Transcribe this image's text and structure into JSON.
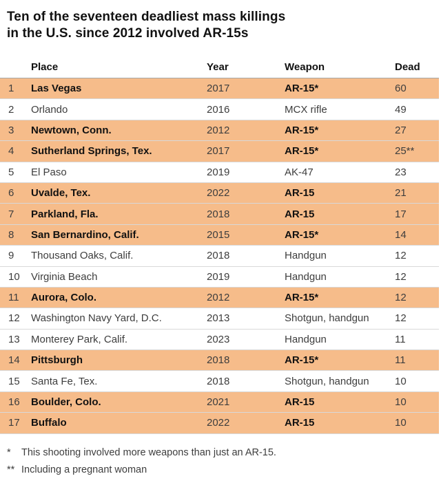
{
  "title": "Ten of the seventeen deadliest mass killings in the U.S. since 2012 involved AR-15s",
  "title_lines": [
    "Ten of the seventeen deadliest mass killings",
    "in the U.S. since 2012 involved AR-15s"
  ],
  "colors": {
    "highlight": "#F6BC8A",
    "row_divider": "#D8D8D8",
    "header_rule": "#A6A6A6",
    "text_primary": "#111111",
    "text_secondary": "#3D3D3D"
  },
  "chart_data": {
    "type": "table",
    "title": "Ten of the seventeen deadliest mass killings in the U.S. since 2012 involved AR-15s",
    "columns": [
      "Place",
      "Year",
      "Weapon",
      "Dead"
    ],
    "highlight_meaning": "Rows highlighted orange involved AR-15s",
    "rows": [
      {
        "rank": "1",
        "place": "Las Vegas",
        "year": "2017",
        "weapon": "AR-15*",
        "dead": "60",
        "highlight": true
      },
      {
        "rank": "2",
        "place": "Orlando",
        "year": "2016",
        "weapon": "MCX rifle",
        "dead": "49",
        "highlight": false
      },
      {
        "rank": "3",
        "place": "Newtown, Conn.",
        "year": "2012",
        "weapon": "AR-15*",
        "dead": "27",
        "highlight": true
      },
      {
        "rank": "4",
        "place": "Sutherland Springs, Tex.",
        "year": "2017",
        "weapon": "AR-15*",
        "dead": "25**",
        "highlight": true
      },
      {
        "rank": "5",
        "place": "El Paso",
        "year": "2019",
        "weapon": "AK-47",
        "dead": "23",
        "highlight": false
      },
      {
        "rank": "6",
        "place": "Uvalde, Tex.",
        "year": "2022",
        "weapon": "AR-15",
        "dead": "21",
        "highlight": true
      },
      {
        "rank": "7",
        "place": "Parkland, Fla.",
        "year": "2018",
        "weapon": "AR-15",
        "dead": "17",
        "highlight": true
      },
      {
        "rank": "8",
        "place": "San Bernardino, Calif.",
        "year": "2015",
        "weapon": "AR-15*",
        "dead": "14",
        "highlight": true
      },
      {
        "rank": "9",
        "place": "Thousand Oaks, Calif.",
        "year": "2018",
        "weapon": "Handgun",
        "dead": "12",
        "highlight": false
      },
      {
        "rank": "10",
        "place": "Virginia Beach",
        "year": "2019",
        "weapon": "Handgun",
        "dead": "12",
        "highlight": false
      },
      {
        "rank": "11",
        "place": "Aurora, Colo.",
        "year": "2012",
        "weapon": "AR-15*",
        "dead": "12",
        "highlight": true
      },
      {
        "rank": "12",
        "place": "Washington Navy Yard, D.C.",
        "year": "2013",
        "weapon": "Shotgun, handgun",
        "dead": "12",
        "highlight": false
      },
      {
        "rank": "13",
        "place": "Monterey Park, Calif.",
        "year": "2023",
        "weapon": "Handgun",
        "dead": "11",
        "highlight": false
      },
      {
        "rank": "14",
        "place": "Pittsburgh",
        "year": "2018",
        "weapon": "AR-15*",
        "dead": "11",
        "highlight": true
      },
      {
        "rank": "15",
        "place": "Santa Fe, Tex.",
        "year": "2018",
        "weapon": "Shotgun, handgun",
        "dead": "10",
        "highlight": false
      },
      {
        "rank": "16",
        "place": "Boulder, Colo.",
        "year": "2021",
        "weapon": "AR-15",
        "dead": "10",
        "highlight": true
      },
      {
        "rank": "17",
        "place": "Buffalo",
        "year": "2022",
        "weapon": "AR-15",
        "dead": "10",
        "highlight": true
      }
    ]
  },
  "footnotes": [
    {
      "marker": "*",
      "text": "This shooting involved more weapons than just an AR-15."
    },
    {
      "marker": "**",
      "text": "Including a pregnant woman"
    }
  ]
}
